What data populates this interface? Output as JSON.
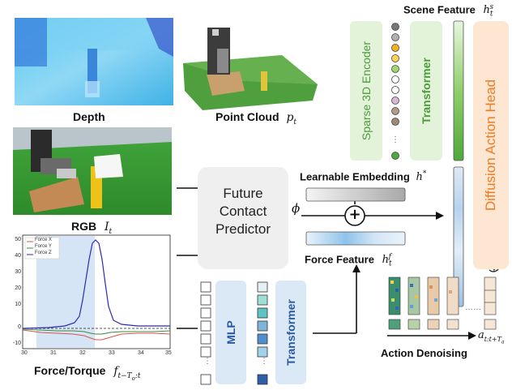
{
  "inputs": {
    "depth_label": "Depth",
    "point_cloud_label": "Point Cloud",
    "point_cloud_symbol": "p_t",
    "rgb_label": "RGB",
    "rgb_symbol": "I_t",
    "force_label": "Force/Torque",
    "force_symbol": "f_{t-T_o:t}"
  },
  "force_plot": {
    "legend": [
      "Force X",
      "Force Y",
      "Force Z"
    ],
    "x_ticks": [
      "30",
      "31",
      "32",
      "33",
      "34",
      "35"
    ],
    "y_ticks": [
      "50",
      "40",
      "30",
      "20",
      "10",
      "0",
      "-10"
    ],
    "colors": {
      "x": "#d9534f",
      "y": "#3c8c3c",
      "z": "#2b2bb8",
      "highlight": "#cfe0f3"
    }
  },
  "modules": {
    "sparse_encoder": "Sparse 3D Encoder",
    "transformer_scene": "Transformer",
    "future_contact_predictor": [
      "Future",
      "Contact",
      "Predictor"
    ],
    "mlp": "MLP",
    "transformer_force": "Transformer",
    "diffusion_head": "Diffusion Action Head"
  },
  "features": {
    "scene_feature": "Scene Feature",
    "scene_symbol": "h_t^s",
    "learnable_embedding": "Learnable Embedding",
    "learnable_symbol": "h^*",
    "force_feature": "Force Feature",
    "force_symbol": "h_t^f",
    "phi": "ϕ",
    "plus": "+"
  },
  "denoising": {
    "label": "Action Denoising",
    "output_symbol": "a_{t:t+T_a}"
  },
  "colors": {
    "green_box": "#e3f3d9",
    "green_text": "#4d9a3a",
    "blue_box": "#dbe8f6",
    "blue_text": "#2a5aa0",
    "orange_box": "#fde6d2",
    "orange_text": "#f07a20",
    "gray_box": "#efefef"
  }
}
